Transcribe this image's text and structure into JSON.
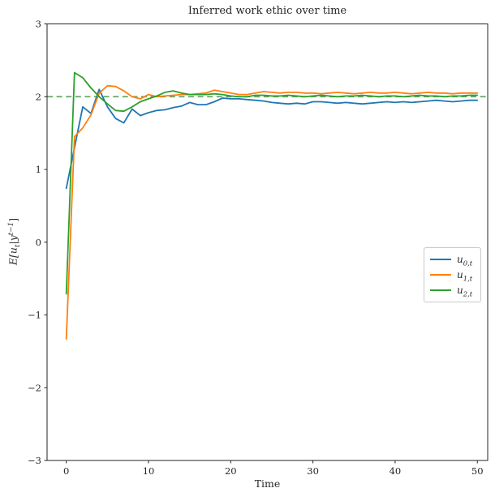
{
  "figure": {
    "background": "#ffffff",
    "text_color": "#262626"
  },
  "chart_data": {
    "type": "line",
    "title": "Inferred work ethic over time",
    "xlabel": "Time",
    "ylabel": "E[u_t | y^(t-1)]",
    "ylabel_parts": {
      "pre": "E[",
      "var1": "u",
      "sub": "t",
      "mid": "|",
      "var2": "y",
      "sup": "t−1",
      "post": "]"
    },
    "xlim": [
      -2.34,
      51.26
    ],
    "ylim": [
      -3,
      3
    ],
    "xticks": [
      0,
      10,
      20,
      30,
      40,
      50
    ],
    "xtick_labels": [
      "0",
      "10",
      "20",
      "30",
      "40",
      "50"
    ],
    "yticks": [
      3,
      2,
      1,
      0,
      -1,
      -2,
      -3
    ],
    "ytick_labels": [
      "3",
      "2",
      "1",
      "0",
      "−1",
      "−2",
      "−3"
    ],
    "grid": false,
    "legend_position": "center right",
    "reference_line": {
      "y": 2.0,
      "color": "#64a864",
      "style": "dashed"
    },
    "x": [
      0,
      1,
      2,
      3,
      4,
      5,
      6,
      7,
      8,
      9,
      10,
      11,
      12,
      13,
      14,
      15,
      16,
      17,
      18,
      19,
      20,
      21,
      22,
      23,
      24,
      25,
      26,
      27,
      28,
      29,
      30,
      31,
      32,
      33,
      34,
      35,
      36,
      37,
      38,
      39,
      40,
      41,
      42,
      43,
      44,
      45,
      46,
      47,
      48,
      49,
      50
    ],
    "series": [
      {
        "name": "u_{0,t}",
        "legend_var": "u",
        "legend_sub": "0,t",
        "color": "#1f77b4",
        "values": [
          0.74,
          1.3,
          1.86,
          1.77,
          2.1,
          1.86,
          1.7,
          1.64,
          1.83,
          1.74,
          1.78,
          1.81,
          1.82,
          1.85,
          1.87,
          1.92,
          1.89,
          1.89,
          1.93,
          1.98,
          1.97,
          1.97,
          1.96,
          1.95,
          1.94,
          1.92,
          1.91,
          1.9,
          1.91,
          1.9,
          1.93,
          1.93,
          1.92,
          1.91,
          1.92,
          1.91,
          1.9,
          1.91,
          1.92,
          1.93,
          1.92,
          1.93,
          1.92,
          1.93,
          1.94,
          1.95,
          1.94,
          1.93,
          1.94,
          1.95,
          1.95
        ]
      },
      {
        "name": "u_{1,t}",
        "legend_var": "u",
        "legend_sub": "1,t",
        "color": "#ff7f0e",
        "values": [
          -1.33,
          1.45,
          1.57,
          1.75,
          2.05,
          2.15,
          2.14,
          2.08,
          2.0,
          1.97,
          2.03,
          2.0,
          2.01,
          2.02,
          2.03,
          2.03,
          2.04,
          2.05,
          2.09,
          2.07,
          2.05,
          2.03,
          2.03,
          2.05,
          2.07,
          2.06,
          2.05,
          2.06,
          2.06,
          2.05,
          2.05,
          2.04,
          2.05,
          2.06,
          2.05,
          2.04,
          2.05,
          2.06,
          2.05,
          2.05,
          2.06,
          2.05,
          2.04,
          2.05,
          2.06,
          2.05,
          2.05,
          2.04,
          2.05,
          2.05,
          2.05
        ]
      },
      {
        "name": "u_{2,t}",
        "legend_var": "u",
        "legend_sub": "2,t",
        "color": "#2ca02c",
        "values": [
          -0.71,
          2.33,
          2.26,
          2.12,
          2.0,
          1.9,
          1.81,
          1.8,
          1.86,
          1.93,
          1.97,
          2.01,
          2.06,
          2.08,
          2.05,
          2.03,
          2.03,
          2.03,
          2.04,
          2.03,
          2.01,
          2.0,
          2.0,
          2.02,
          2.02,
          2.01,
          2.01,
          2.02,
          2.01,
          2.0,
          2.01,
          2.02,
          2.01,
          2.0,
          2.01,
          2.01,
          2.02,
          2.01,
          2.0,
          2.01,
          2.01,
          2.0,
          2.01,
          2.02,
          2.01,
          2.01,
          2.0,
          2.01,
          2.01,
          2.02,
          2.02
        ]
      }
    ]
  }
}
